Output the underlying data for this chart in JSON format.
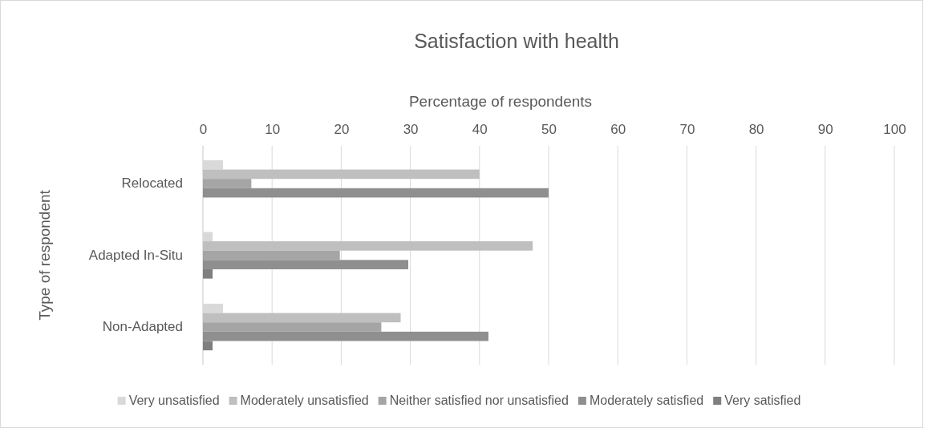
{
  "chart_data": {
    "type": "bar",
    "orientation": "horizontal",
    "title": "Satisfaction with health",
    "xlabel": "Percentage of respondents",
    "ylabel": "Type of respondent",
    "categories": [
      "Relocated",
      "Adapted In-Situ",
      "Non-Adapted"
    ],
    "series": [
      {
        "name": "Very unsatisfied",
        "color": "#d9d9d9",
        "values": [
          2.9,
          1.4,
          2.9
        ]
      },
      {
        "name": "Moderately unsatisfied",
        "color": "#bfbfbf",
        "values": [
          40,
          47.7,
          28.6
        ]
      },
      {
        "name": "Neither satisfied nor unsatisfied",
        "color": "#a5a5a5",
        "values": [
          7,
          19.8,
          25.8
        ]
      },
      {
        "name": "Moderately satisfied",
        "color": "#8f8f8f",
        "values": [
          50,
          29.7,
          41.3
        ]
      },
      {
        "name": "Very satisfied",
        "color": "#7f7f7f",
        "values": [
          0,
          1.4,
          1.4
        ]
      }
    ],
    "xlim": [
      0,
      100
    ],
    "xticks": [
      0,
      10,
      20,
      30,
      40,
      50,
      60,
      70,
      80,
      90,
      100
    ],
    "grid": "x",
    "legend": "bottom"
  }
}
